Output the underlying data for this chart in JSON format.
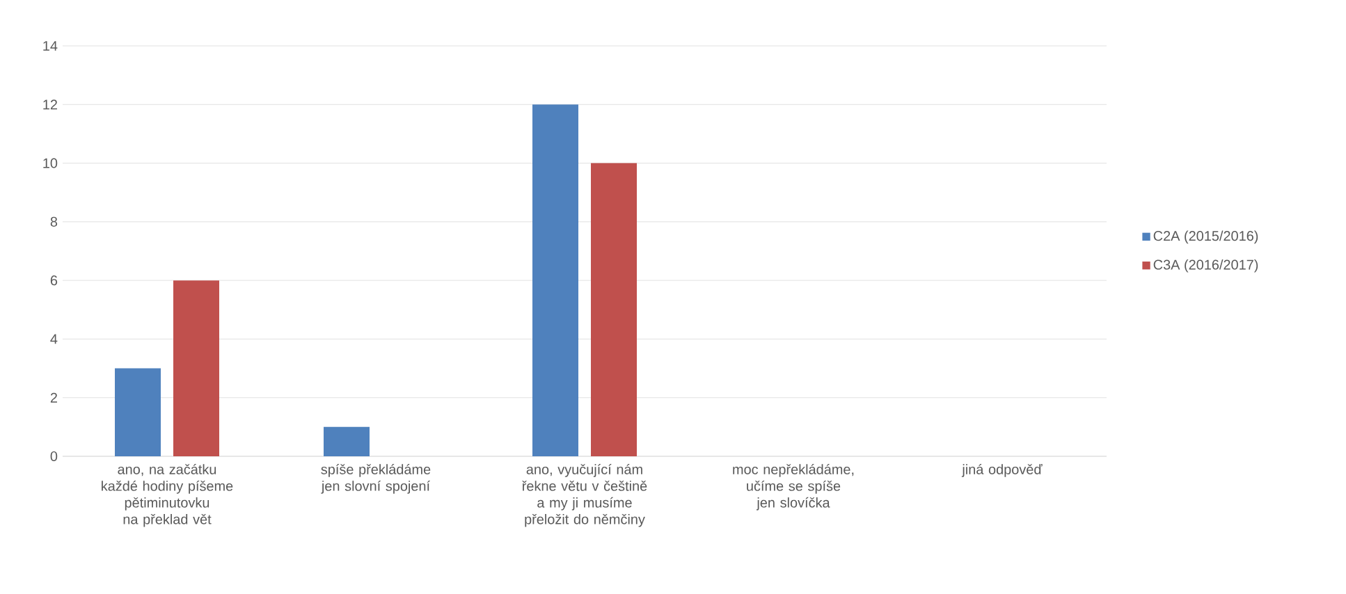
{
  "chart_data": {
    "type": "bar",
    "categories": [
      "ano, na začátku každé hodiny píšeme pětiminutovku na překlad vět",
      "spíše překládáme jen slovní spojení",
      "ano, vyučující nám řekne větu v češtině a my ji musíme přeložit do němčiny",
      "moc nepřekládáme, učíme se spíše jen slovíčka",
      "jiná odpověď"
    ],
    "series": [
      {
        "name": "C2A (2015/2016)",
        "color": "#4f81bd",
        "values": [
          3,
          1,
          12,
          0,
          0
        ]
      },
      {
        "name": "C3A (2016/2017)",
        "color": "#c0504d",
        "values": [
          6,
          0,
          10,
          0,
          0
        ]
      }
    ],
    "ylim": [
      0,
      14
    ],
    "yticks": [
      0,
      2,
      4,
      6,
      8,
      10,
      12,
      14
    ],
    "grid": "y",
    "legend": "right"
  }
}
